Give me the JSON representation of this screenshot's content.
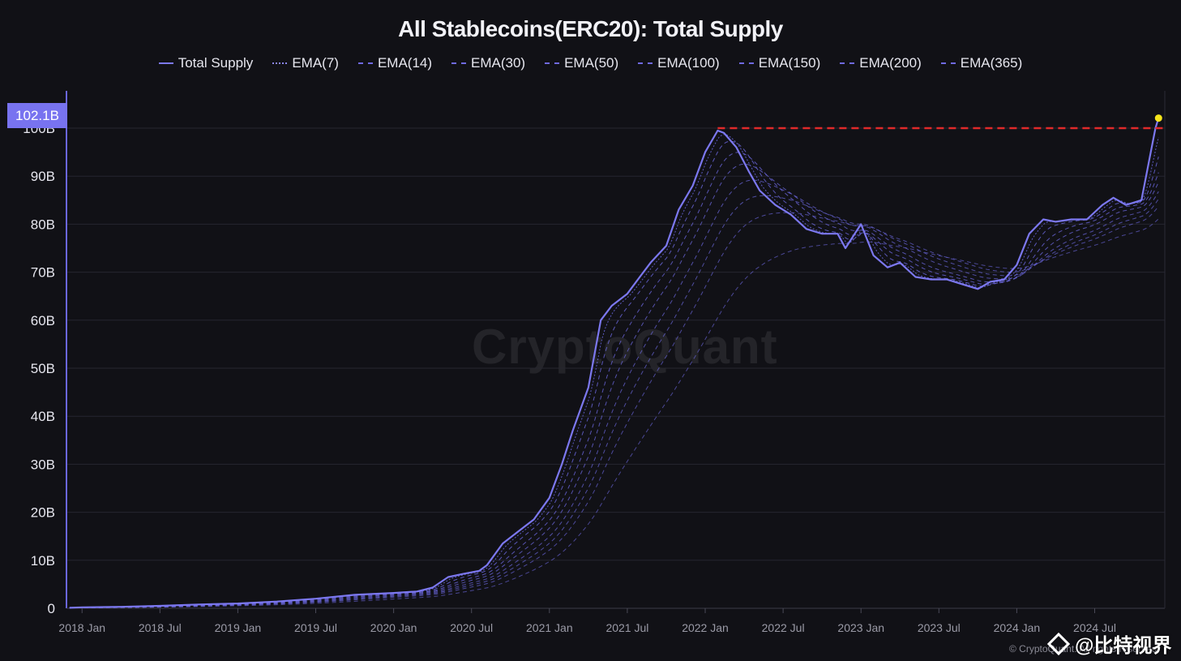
{
  "colors": {
    "background": "#111116",
    "total_supply": "#7c78f0",
    "ema": "#6a66dc",
    "ath_line": "#e02a2a",
    "latest_dot": "#f5e51b",
    "value_tag": "#7873f0"
  },
  "watermark": "CryptoQuant",
  "value_tag": "102.1B",
  "footer": {
    "credit": "© CryptoQuant. All rights reserved",
    "handle": "@比特视界",
    "handle_icon": "binance-diamond-icon"
  },
  "chart_data": {
    "type": "line",
    "title": "All Stablecoins(ERC20): Total Supply",
    "xlabel": "",
    "ylabel": "",
    "x_ticks": [
      "2018 Jan",
      "2018 Jul",
      "2019 Jan",
      "2019 Jul",
      "2020 Jan",
      "2020 Jul",
      "2021 Jan",
      "2021 Jul",
      "2022 Jan",
      "2022 Jul",
      "2023 Jan",
      "2023 Jul",
      "2024 Jan",
      "2024 Jul"
    ],
    "y_ticks": [
      "0",
      "10B",
      "20B",
      "30B",
      "40B",
      "50B",
      "60B",
      "70B",
      "80B",
      "90B",
      "100B"
    ],
    "ylim": [
      0,
      100
    ],
    "y_unit": "B",
    "xlim": [
      2017.9,
      2024.95
    ],
    "grid": true,
    "legend_position": "top-center",
    "reference_line": {
      "y": 100,
      "style": "dashed",
      "from_x": 2022.08
    },
    "latest_point": {
      "x": 2024.91,
      "y": 102.1,
      "label": "102.1B"
    },
    "series": [
      {
        "name": "Total Supply",
        "style": "solid",
        "x": [
          2017.92,
          2018.0,
          2018.25,
          2018.5,
          2018.75,
          2019.0,
          2019.25,
          2019.5,
          2019.75,
          2020.0,
          2020.15,
          2020.25,
          2020.35,
          2020.45,
          2020.55,
          2020.6,
          2020.7,
          2020.8,
          2020.9,
          2021.0,
          2021.08,
          2021.15,
          2021.25,
          2021.33,
          2021.4,
          2021.5,
          2021.58,
          2021.65,
          2021.75,
          2021.83,
          2021.92,
          2022.0,
          2022.08,
          2022.12,
          2022.2,
          2022.28,
          2022.35,
          2022.45,
          2022.55,
          2022.65,
          2022.75,
          2022.85,
          2022.9,
          2023.0,
          2023.08,
          2023.17,
          2023.25,
          2023.35,
          2023.45,
          2023.55,
          2023.65,
          2023.75,
          2023.83,
          2023.92,
          2024.0,
          2024.08,
          2024.17,
          2024.25,
          2024.35,
          2024.45,
          2024.55,
          2024.62,
          2024.7,
          2024.75,
          2024.8,
          2024.86,
          2024.89,
          2024.91
        ],
        "y": [
          0.1,
          0.2,
          0.3,
          0.5,
          0.8,
          1.0,
          1.4,
          2.0,
          2.8,
          3.2,
          3.5,
          4.3,
          6.5,
          7.2,
          7.8,
          9.0,
          13.5,
          16.0,
          18.5,
          23.0,
          30.0,
          37.0,
          46.0,
          60.0,
          63.0,
          65.5,
          69.0,
          72.0,
          75.5,
          83.0,
          88.0,
          95.0,
          99.5,
          99.0,
          96.0,
          91.0,
          87.0,
          84.0,
          82.0,
          79.0,
          78.0,
          78.0,
          75.0,
          80.0,
          73.5,
          71.0,
          72.0,
          69.0,
          68.5,
          68.5,
          67.5,
          66.5,
          68.0,
          68.5,
          71.5,
          78.0,
          81.0,
          80.5,
          81.0,
          81.0,
          84.0,
          85.5,
          84.0,
          84.5,
          85.0,
          95.0,
          100.0,
          102.1
        ]
      },
      {
        "name": "EMA(7)",
        "style": "dotted",
        "lag": 0.04
      },
      {
        "name": "EMA(14)",
        "style": "dashed",
        "lag": 0.08
      },
      {
        "name": "EMA(30)",
        "style": "dashed",
        "lag": 0.14
      },
      {
        "name": "EMA(50)",
        "style": "dashed",
        "lag": 0.2
      },
      {
        "name": "EMA(100)",
        "style": "dashed",
        "lag": 0.28
      },
      {
        "name": "EMA(150)",
        "style": "dashed",
        "lag": 0.36
      },
      {
        "name": "EMA(200)",
        "style": "dashed",
        "lag": 0.46
      },
      {
        "name": "EMA(365)",
        "style": "dashed",
        "lag": 0.7
      }
    ]
  }
}
